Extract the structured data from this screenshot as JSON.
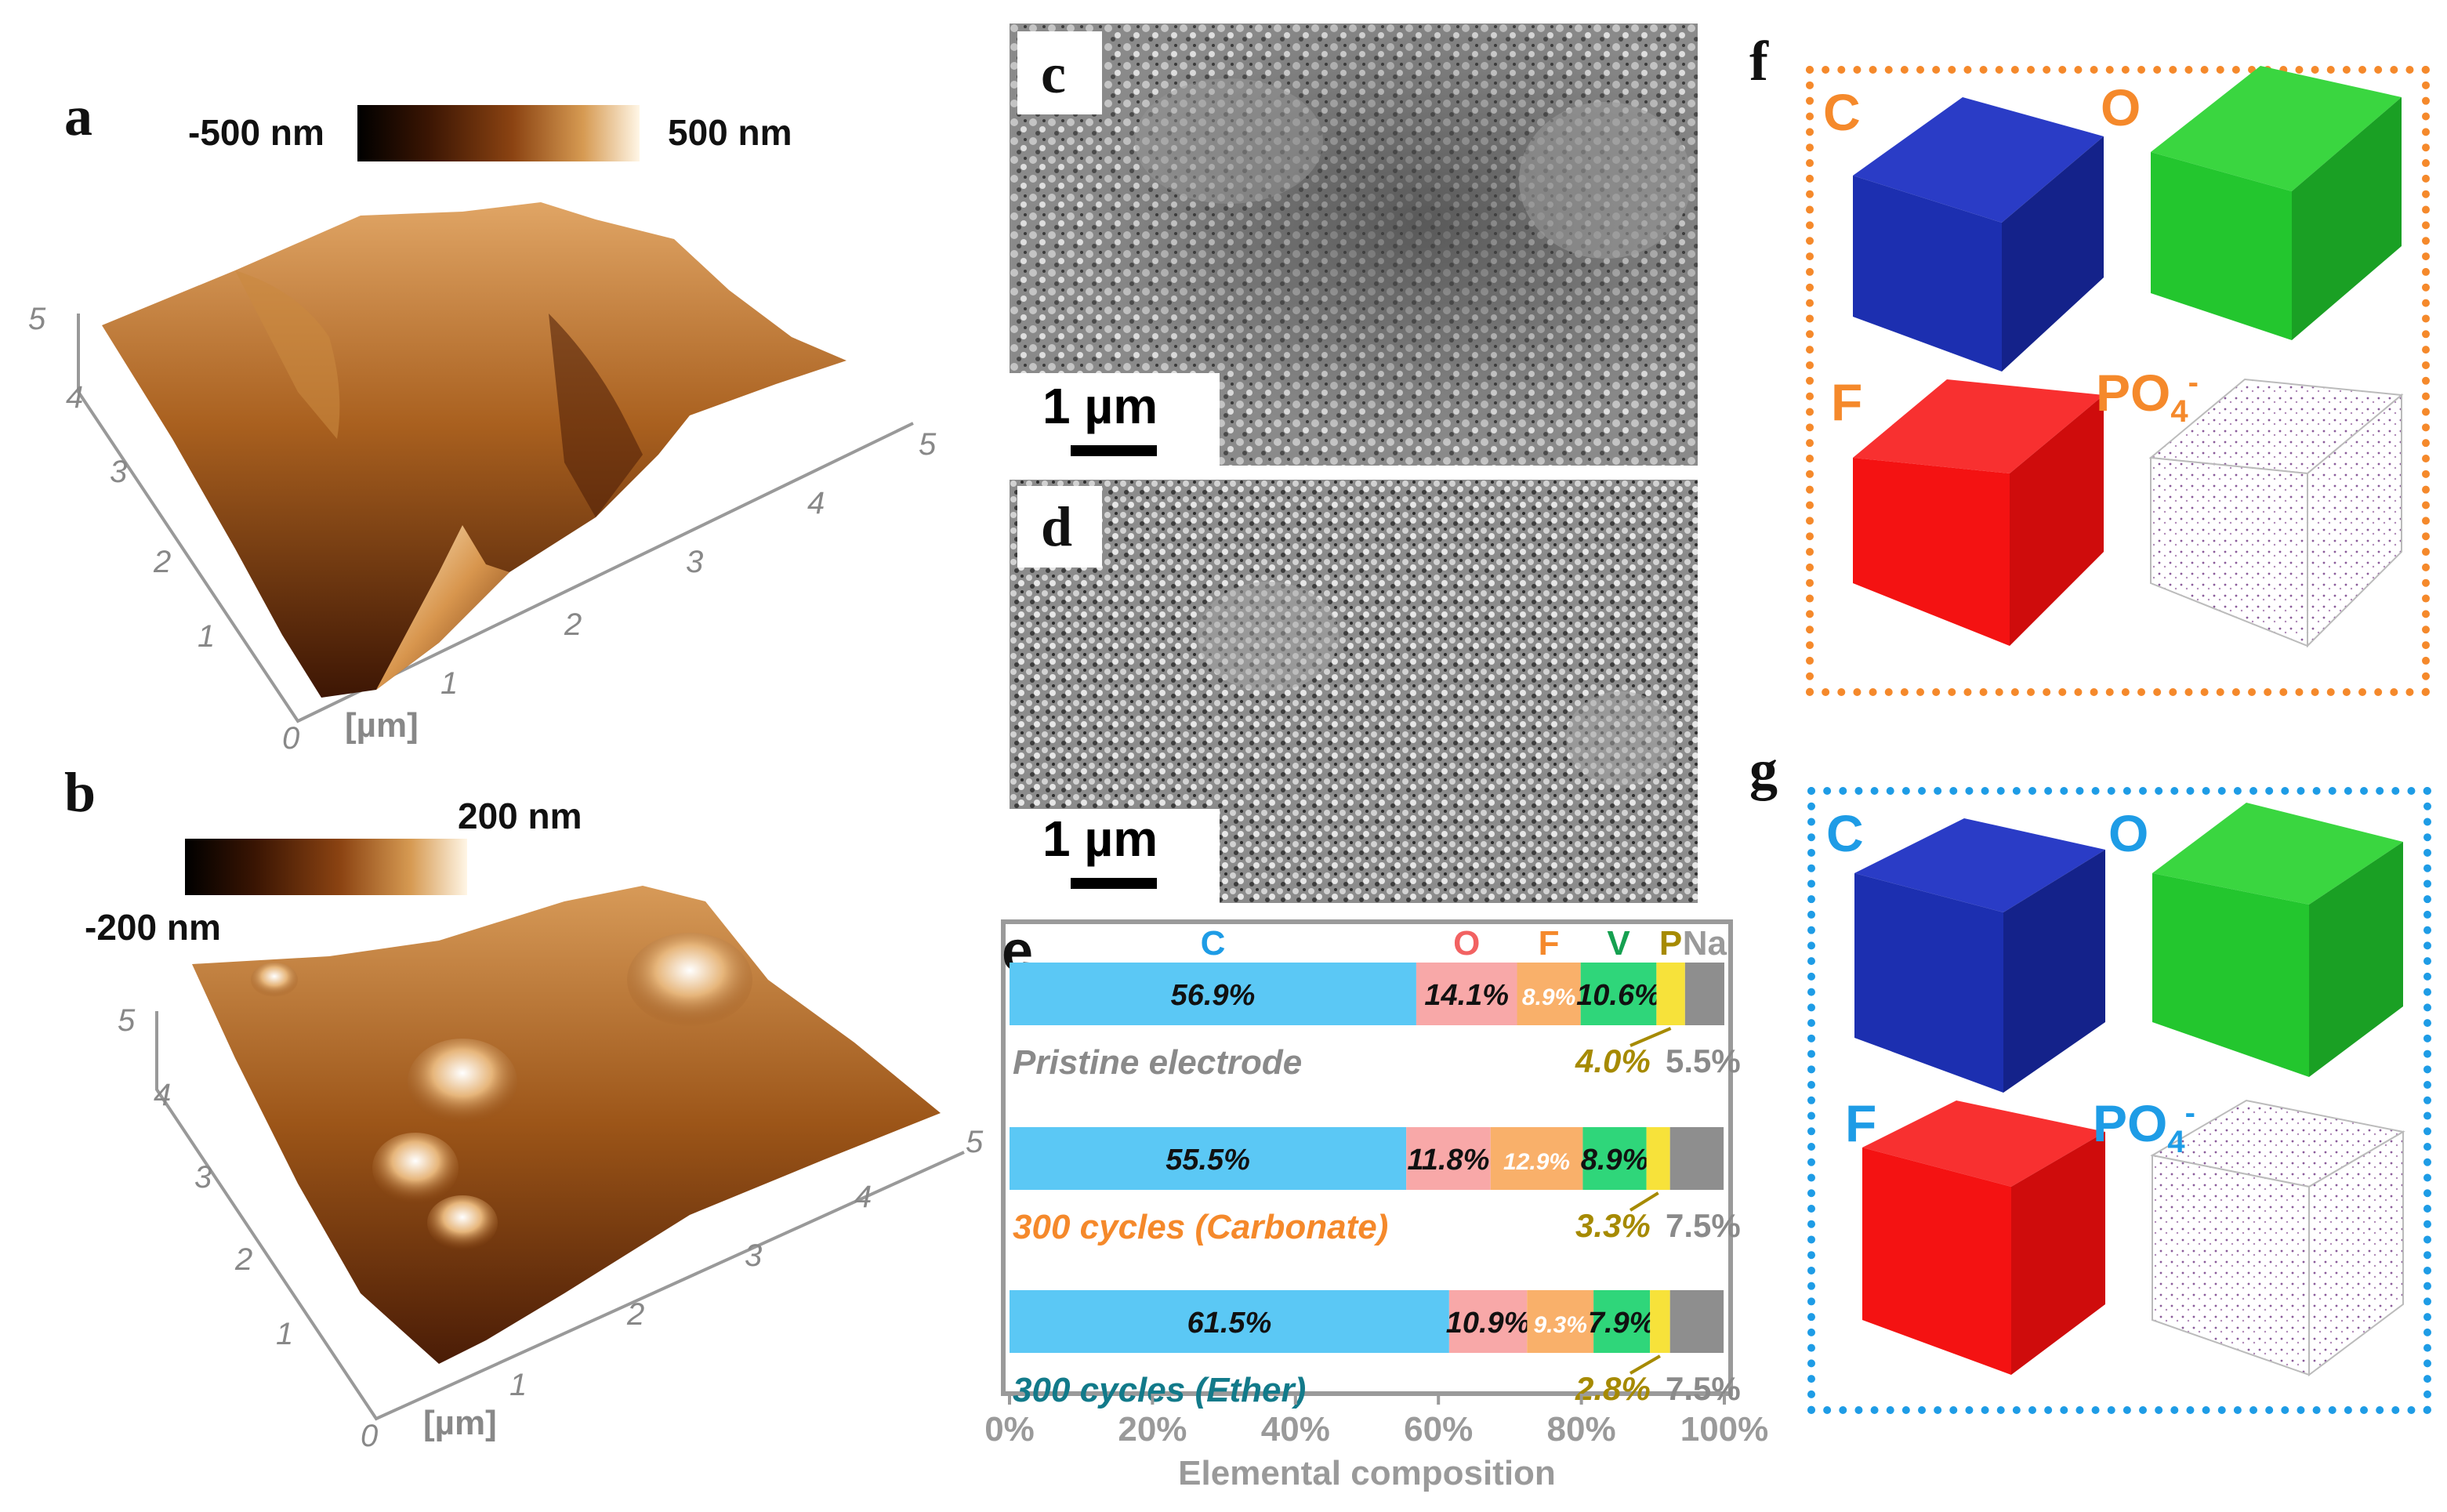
{
  "panel_a": {
    "label": "a",
    "cbar_min": "-500 nm",
    "cbar_max": "500 nm",
    "axis_ticks_y": [
      "0",
      "1",
      "2",
      "3",
      "4",
      "5"
    ],
    "axis_ticks_x": [
      "1",
      "2",
      "3",
      "4",
      "5"
    ],
    "axis_unit": "[µm]"
  },
  "panel_b": {
    "label": "b",
    "cbar_min": "-200 nm",
    "cbar_max": "200 nm",
    "axis_ticks_y": [
      "0",
      "1",
      "2",
      "3",
      "4",
      "5"
    ],
    "axis_ticks_x": [
      "1",
      "2",
      "3",
      "4",
      "5"
    ],
    "axis_unit": "[µm]"
  },
  "panel_c": {
    "label": "c",
    "scale": "1 µm"
  },
  "panel_d": {
    "label": "d",
    "scale": "1 µm"
  },
  "panel_f": {
    "label": "f",
    "elements": [
      "C",
      "O",
      "F",
      "PO",
      "4",
      "-"
    ]
  },
  "panel_g": {
    "label": "g",
    "elements": [
      "C",
      "O",
      "F",
      "PO",
      "4",
      "-"
    ]
  },
  "colors": {
    "C": "#5bc8f5",
    "O": "#f8a8a8",
    "F": "#f9b06a",
    "V": "#2fd67a",
    "P": "#f7e23a",
    "Na": "#8e8e8e",
    "f_border": "#f5892b",
    "g_border": "#1e9ce6",
    "cube_C": "#1c2fb0",
    "cube_O": "#23c62e",
    "cube_F": "#f41212"
  },
  "chart_data": {
    "type": "bar",
    "orientation": "horizontal-stacked",
    "panel_label": "e",
    "xlabel": "Elemental composition",
    "x_ticks": [
      "0%",
      "20%",
      "40%",
      "60%",
      "80%",
      "100%"
    ],
    "xlim": [
      0,
      100
    ],
    "series_headers": [
      "C",
      "O",
      "F",
      "V",
      "P",
      "Na"
    ],
    "categories": [
      "Pristine electrode",
      "300 cycles (Carbonate)",
      "300 cycles (Ether)"
    ],
    "category_colors": [
      "#8a8a8a",
      "#f5892b",
      "#127a8a"
    ],
    "series": [
      {
        "name": "C",
        "values": [
          56.9,
          55.5,
          61.5
        ],
        "labels": [
          "56.9%",
          "55.5%",
          "61.5%"
        ]
      },
      {
        "name": "O",
        "values": [
          14.1,
          11.8,
          10.9
        ],
        "labels": [
          "14.1%",
          "11.8%",
          "10.9%"
        ]
      },
      {
        "name": "F",
        "values": [
          8.9,
          12.9,
          9.3
        ],
        "labels": [
          "8.9%",
          "12.9%",
          "9.3%"
        ]
      },
      {
        "name": "V",
        "values": [
          10.6,
          8.9,
          7.9
        ],
        "labels": [
          "10.6%",
          "8.9%",
          "7.9%"
        ]
      },
      {
        "name": "P",
        "values": [
          4.0,
          3.3,
          2.8
        ],
        "labels": [
          "4.0%",
          "3.3%",
          "2.8%"
        ]
      },
      {
        "name": "Na",
        "values": [
          5.5,
          7.5,
          7.5
        ],
        "labels": [
          "5.5%",
          "7.5%",
          "7.5%"
        ]
      }
    ]
  }
}
